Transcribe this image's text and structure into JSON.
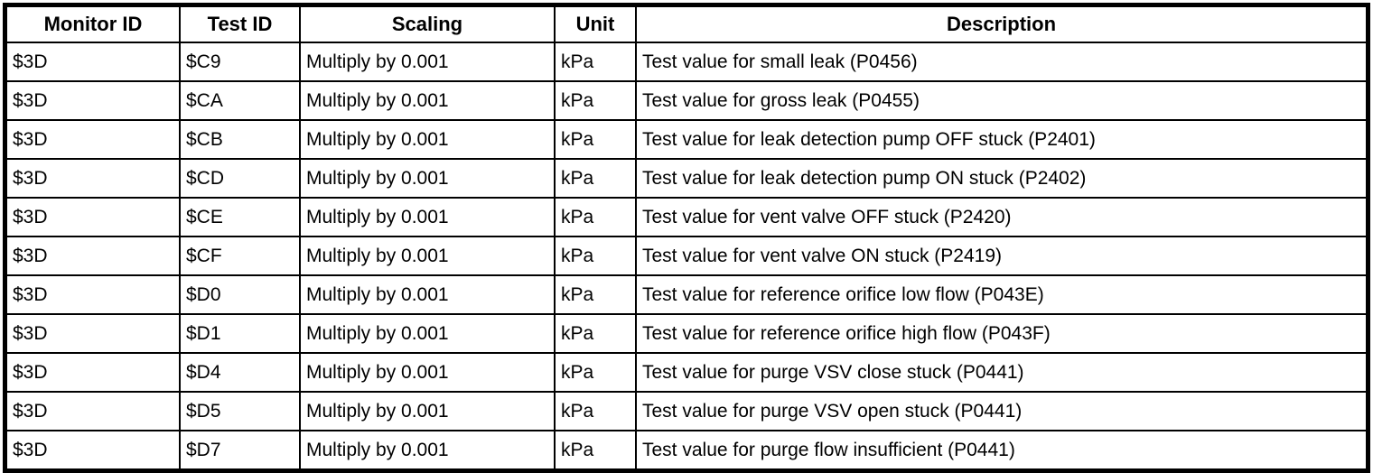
{
  "colors": {
    "border": "#000000",
    "background": "#ffffff",
    "text": "#000000"
  },
  "table": {
    "columns": [
      "Monitor ID",
      "Test ID",
      "Scaling",
      "Unit",
      "Description"
    ],
    "rows": [
      [
        "$3D",
        "$C9",
        "Multiply by 0.001",
        "kPa",
        "Test value for small leak (P0456)"
      ],
      [
        "$3D",
        "$CA",
        "Multiply by 0.001",
        "kPa",
        "Test value for gross leak (P0455)"
      ],
      [
        "$3D",
        "$CB",
        "Multiply by 0.001",
        "kPa",
        "Test value for leak detection pump OFF stuck (P2401)"
      ],
      [
        "$3D",
        "$CD",
        "Multiply by 0.001",
        "kPa",
        "Test value for leak detection pump ON stuck (P2402)"
      ],
      [
        "$3D",
        "$CE",
        "Multiply by 0.001",
        "kPa",
        "Test value for vent valve OFF stuck (P2420)"
      ],
      [
        "$3D",
        "$CF",
        "Multiply by 0.001",
        "kPa",
        "Test value for vent valve ON stuck (P2419)"
      ],
      [
        "$3D",
        "$D0",
        "Multiply by 0.001",
        "kPa",
        "Test value for reference orifice low flow (P043E)"
      ],
      [
        "$3D",
        "$D1",
        "Multiply by 0.001",
        "kPa",
        "Test value for reference orifice high flow (P043F)"
      ],
      [
        "$3D",
        "$D4",
        "Multiply by 0.001",
        "kPa",
        "Test value for purge VSV close stuck (P0441)"
      ],
      [
        "$3D",
        "$D5",
        "Multiply by 0.001",
        "kPa",
        "Test value for purge VSV open stuck (P0441)"
      ],
      [
        "$3D",
        "$D7",
        "Multiply by 0.001",
        "kPa",
        "Test value for purge flow insufficient (P0441)"
      ]
    ]
  }
}
